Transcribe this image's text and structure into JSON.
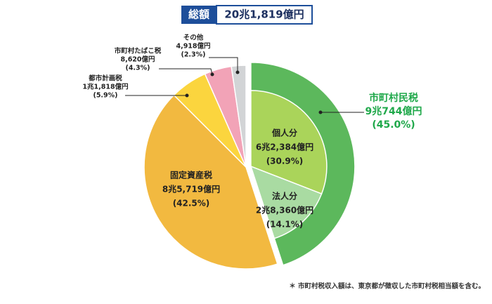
{
  "header": {
    "label": "総額",
    "total": "20兆1,819億円"
  },
  "chart_data": {
    "type": "pie",
    "categories": [
      "市町村民税",
      "固定資産税",
      "都市計画税",
      "市町村たばこ税",
      "その他"
    ],
    "amounts": [
      "9兆744億円",
      "8兆5,719億円",
      "1兆1,818億円",
      "8,620億円",
      "4,918億円"
    ],
    "values": [
      45.0,
      42.5,
      5.9,
      4.3,
      2.3
    ],
    "value_labels": [
      "(45.0%)",
      "(42.5%)",
      "(5.9%)",
      "(4.3%)",
      "(2.3%)"
    ],
    "colors": [
      "#5cb85c",
      "#f2b940",
      "#fbd53e",
      "#f2a3b7",
      "#d2d4d6"
    ],
    "breakdown": {
      "categories": [
        "個人分",
        "法人分"
      ],
      "amounts": [
        "6兆2,384億円",
        "2兆8,360億円"
      ],
      "values": [
        30.9,
        14.1
      ],
      "value_labels": [
        "(30.9%)",
        "(14.1%)"
      ],
      "colors": [
        "#aad45a",
        "#a9dba2"
      ]
    }
  },
  "footnote": "＊ 市町村税収入額は、東京都が徴収した市町村税相当額を含む。"
}
